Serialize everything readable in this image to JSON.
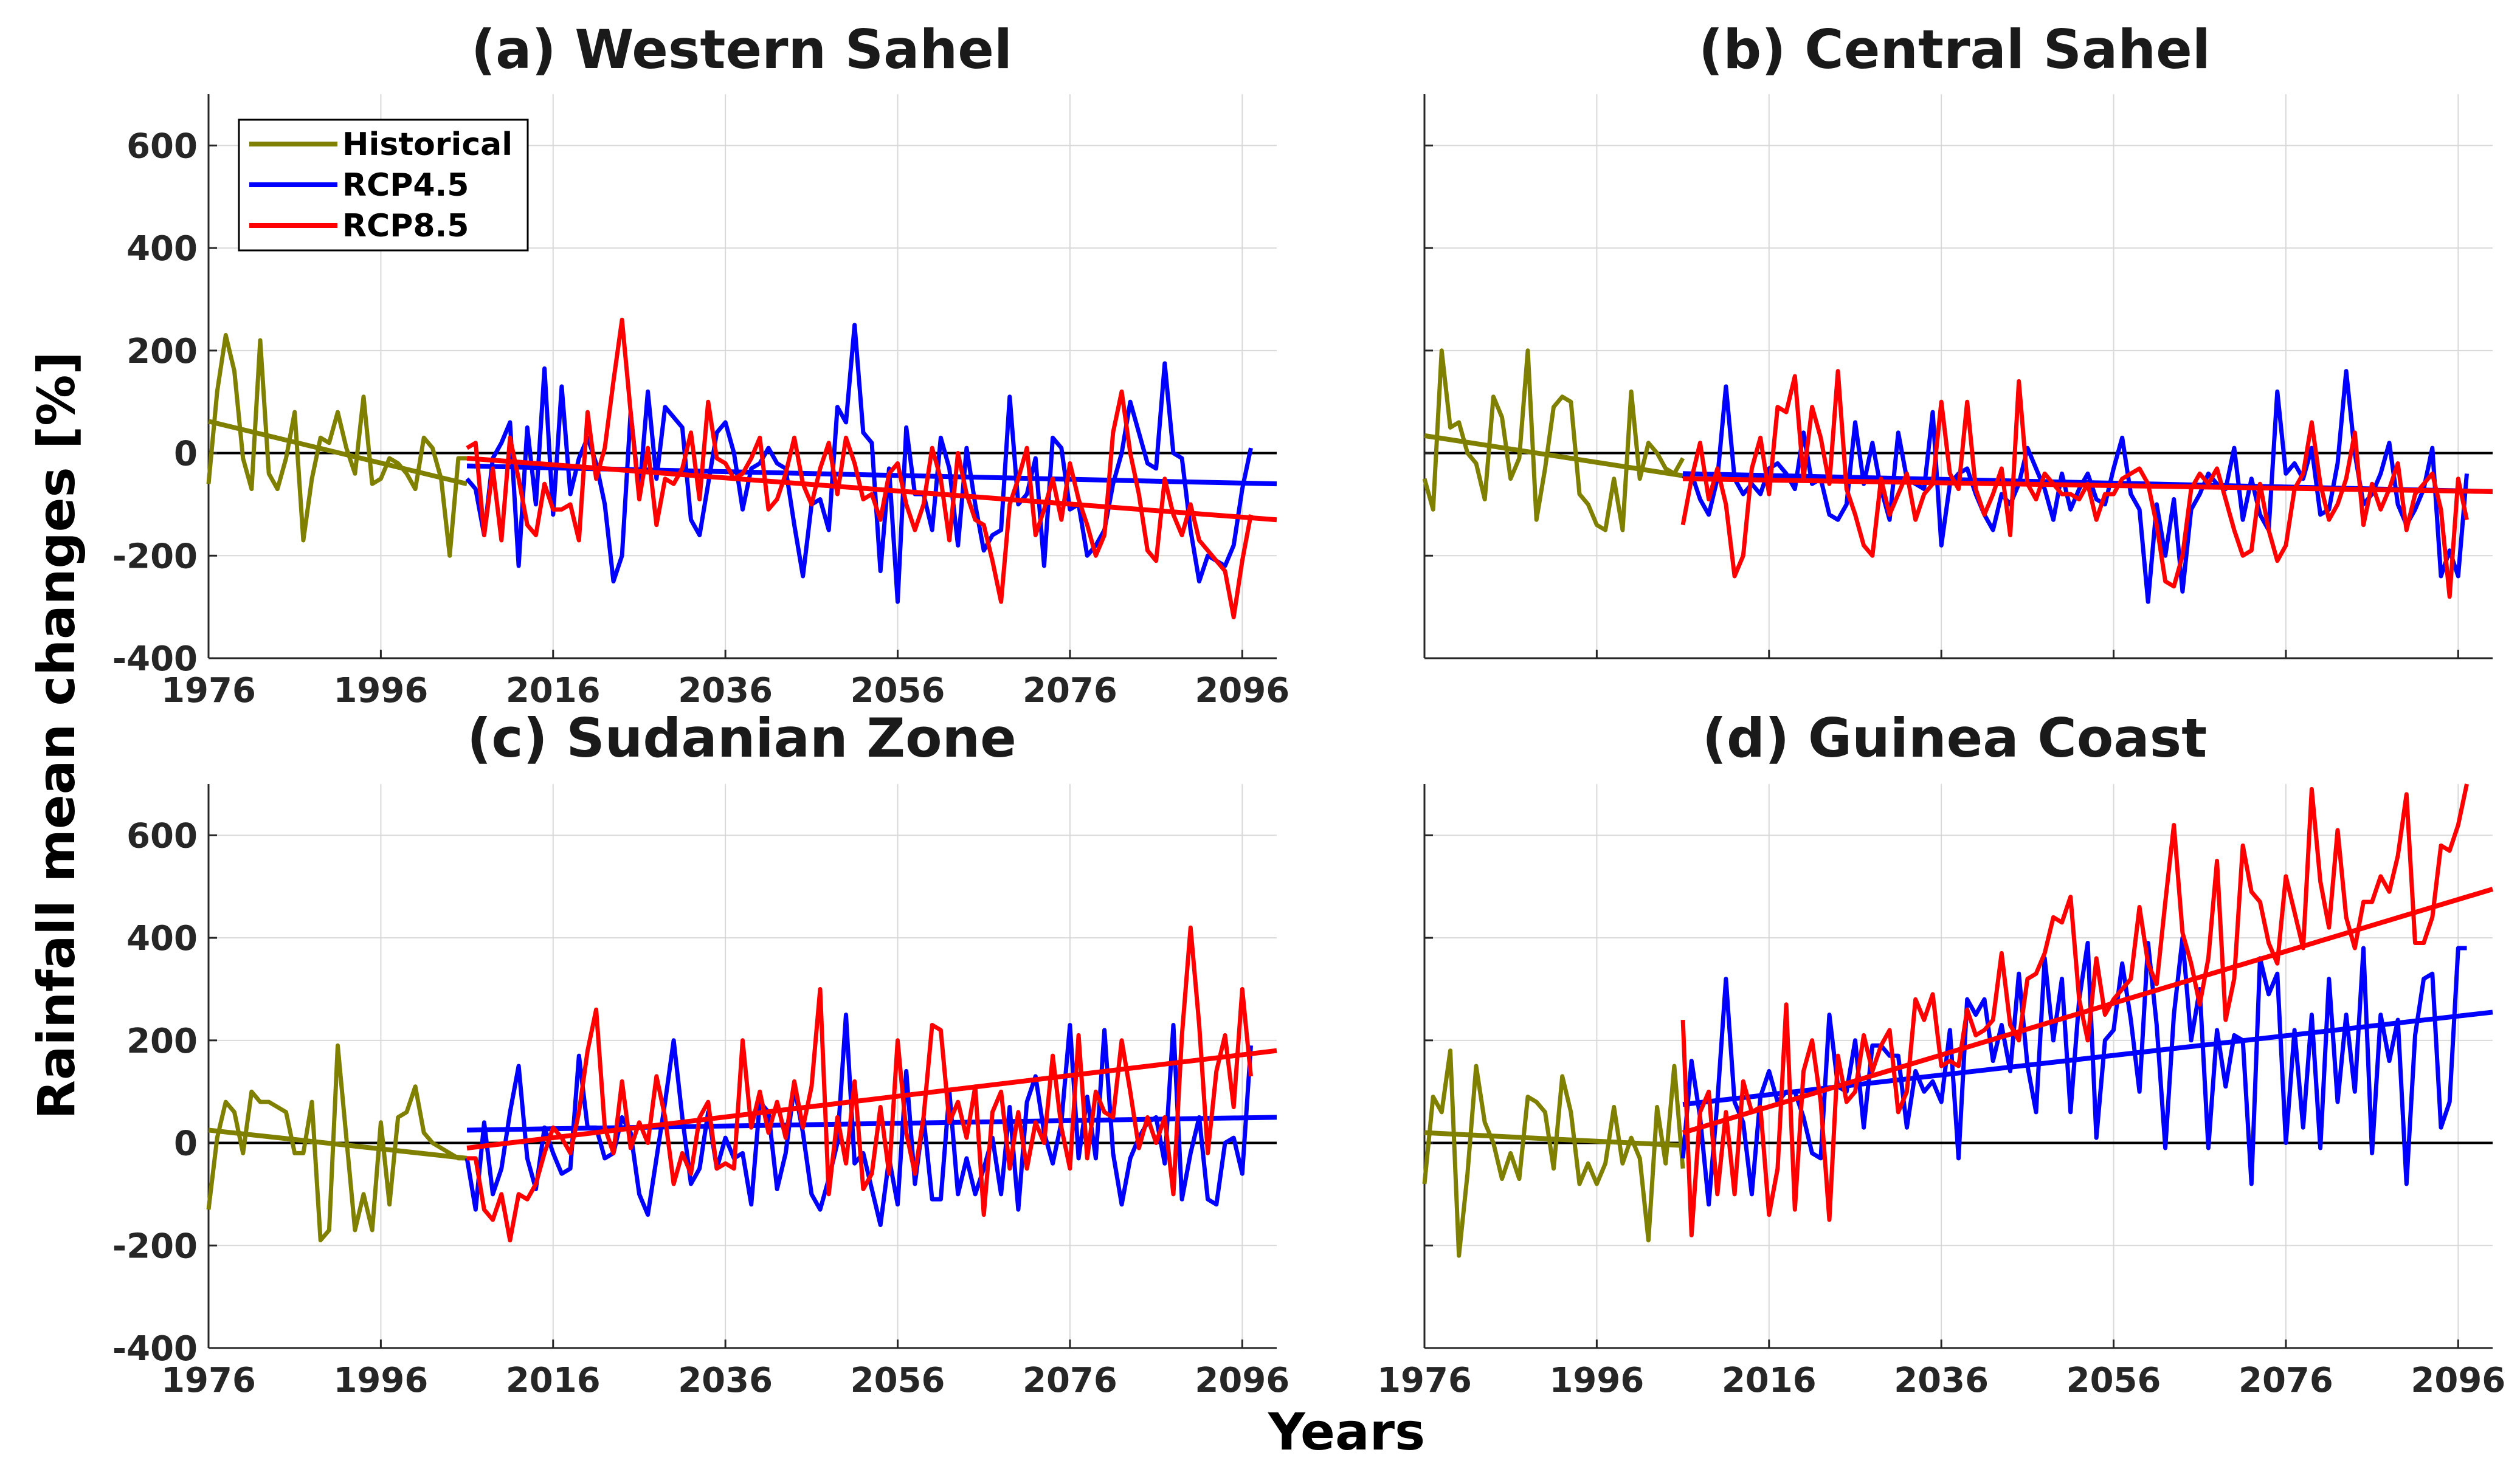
{
  "figure": {
    "ylabel": "Rainfall mean changes [%]",
    "xlabel": "Years"
  },
  "colors": {
    "Historical": "#808000",
    "RCP4.5": "#0000ff",
    "RCP8.5": "#ff0000",
    "zero_line": "#000000",
    "grid": "#d9d9d9"
  },
  "legend": {
    "position": "top-left",
    "entries": [
      "Historical",
      "RCP4.5",
      "RCP8.5"
    ]
  },
  "chart_data": [
    {
      "type": "line",
      "panel": "a",
      "title": "(a)  Western Sahel",
      "xlim": [
        1976,
        2100
      ],
      "ylim": [
        -400,
        700
      ],
      "xticks": [
        "1976",
        "1996",
        "2016",
        "2036",
        "2056",
        "2076",
        "2096"
      ],
      "yticks": [
        "-400",
        "-200",
        "0",
        "200",
        "400",
        "600"
      ],
      "series": [
        {
          "name": "Historical",
          "x_start": 1976,
          "values": [
            -60,
            120,
            230,
            160,
            -10,
            -70,
            220,
            -40,
            -70,
            -10,
            80,
            -170,
            -50,
            30,
            20,
            80,
            10,
            -40,
            110,
            -60,
            -50,
            -10,
            -20,
            -40,
            -70,
            30,
            10,
            -50,
            -200,
            -10,
            -10
          ],
          "trend": [
            [
              1976,
              62
            ],
            [
              2006,
              -60
            ]
          ]
        },
        {
          "name": "RCP4.5",
          "x_start": 2006,
          "values": [
            -50,
            -70,
            -160,
            -10,
            20,
            60,
            -220,
            50,
            -100,
            165,
            -120,
            130,
            -80,
            -10,
            30,
            -20,
            -100,
            -250,
            -200,
            80,
            -80,
            120,
            -50,
            90,
            70,
            50,
            -130,
            -160,
            -60,
            40,
            60,
            0,
            -110,
            -30,
            -20,
            10,
            -20,
            -30,
            -140,
            -240,
            -100,
            -90,
            -150,
            90,
            60,
            250,
            40,
            20,
            -230,
            -30,
            -290,
            50,
            -80,
            -80,
            -150,
            30,
            -30,
            -180,
            10,
            -100,
            -190,
            -160,
            -150,
            110,
            -100,
            -80,
            -10,
            -220,
            30,
            10,
            -110,
            -100,
            -200,
            -180,
            -150,
            -60,
            0,
            100,
            40,
            -20,
            -30,
            175,
            0,
            -10,
            -150,
            -250,
            -200,
            -210,
            -220,
            -180,
            -70,
            10
          ],
          "trend": [
            [
              2006,
              -25
            ],
            [
              2100,
              -60
            ]
          ]
        },
        {
          "name": "RCP8.5",
          "x_start": 2006,
          "values": [
            10,
            20,
            -160,
            -30,
            -170,
            30,
            -50,
            -140,
            -160,
            -60,
            -110,
            -110,
            -100,
            -170,
            80,
            -50,
            10,
            140,
            260,
            80,
            -90,
            10,
            -140,
            -50,
            -60,
            -30,
            40,
            -90,
            100,
            -10,
            -20,
            -50,
            -40,
            -10,
            30,
            -110,
            -90,
            -40,
            30,
            -60,
            -100,
            -30,
            20,
            -80,
            30,
            -20,
            -90,
            -80,
            -130,
            -40,
            -20,
            -100,
            -150,
            -100,
            10,
            -50,
            -170,
            0,
            -80,
            -130,
            -140,
            -210,
            -290,
            -100,
            -50,
            10,
            -160,
            -110,
            -50,
            -130,
            -20,
            -90,
            -140,
            -200,
            -160,
            40,
            120,
            0,
            -80,
            -190,
            -210,
            -50,
            -120,
            -160,
            -100,
            -170,
            -190,
            -210,
            -230,
            -320,
            -210,
            -120
          ],
          "trend": [
            [
              2006,
              -10
            ],
            [
              2100,
              -130
            ]
          ]
        }
      ]
    },
    {
      "type": "line",
      "panel": "b",
      "title": "(b)  Central Sahel",
      "xlim": [
        1976,
        2100
      ],
      "ylim": [
        -400,
        700
      ],
      "xticks": [],
      "yticks": [],
      "series": [
        {
          "name": "Historical",
          "x_start": 1976,
          "values": [
            -50,
            -110,
            200,
            50,
            60,
            0,
            -20,
            -90,
            110,
            70,
            -50,
            -10,
            200,
            -130,
            -30,
            90,
            110,
            100,
            -80,
            -100,
            -140,
            -150,
            -50,
            -150,
            120,
            -50,
            20,
            0,
            -30,
            -40,
            -10
          ],
          "trend": [
            [
              1976,
              34
            ],
            [
              2006,
              -44
            ]
          ]
        },
        {
          "name": "RCP4.5",
          "x_start": 2006,
          "values": [
            -50,
            -40,
            -90,
            -120,
            -50,
            130,
            -50,
            -80,
            -60,
            -80,
            -30,
            -20,
            -40,
            -70,
            40,
            -60,
            -50,
            -120,
            -130,
            -100,
            60,
            -60,
            20,
            -70,
            -130,
            40,
            -50,
            -60,
            -70,
            80,
            -180,
            -60,
            -40,
            -30,
            -80,
            -120,
            -150,
            -80,
            -100,
            -60,
            10,
            -30,
            -70,
            -130,
            -40,
            -110,
            -70,
            -40,
            -90,
            -100,
            -30,
            30,
            -80,
            -110,
            -290,
            -100,
            -200,
            -90,
            -270,
            -110,
            -80,
            -40,
            -60,
            -70,
            10,
            -130,
            -50,
            -120,
            -150,
            120,
            -40,
            -20,
            -50,
            10,
            -120,
            -110,
            -20,
            160,
            0,
            -100,
            -80,
            -40,
            20,
            -100,
            -140,
            -110,
            -70,
            10,
            -240,
            -190,
            -240,
            -40
          ],
          "trend": [
            [
              2006,
              -40
            ],
            [
              2100,
              -75
            ]
          ]
        },
        {
          "name": "RCP8.5",
          "x_start": 2006,
          "values": [
            -140,
            -50,
            20,
            -90,
            -30,
            -100,
            -240,
            -200,
            -30,
            30,
            -80,
            90,
            80,
            150,
            -50,
            90,
            30,
            -60,
            160,
            -70,
            -120,
            -180,
            -200,
            -50,
            -120,
            -80,
            -40,
            -130,
            -80,
            -60,
            100,
            -40,
            -70,
            100,
            -70,
            -120,
            -80,
            -30,
            -160,
            140,
            -60,
            -90,
            -40,
            -60,
            -80,
            -80,
            -90,
            -60,
            -130,
            -80,
            -80,
            -50,
            -40,
            -30,
            -60,
            -140,
            -250,
            -260,
            -200,
            -70,
            -40,
            -60,
            -30,
            -90,
            -150,
            -200,
            -190,
            -60,
            -150,
            -210,
            -180,
            -70,
            -40,
            60,
            -60,
            -130,
            -100,
            -50,
            40,
            -140,
            -60,
            -110,
            -70,
            -20,
            -150,
            -80,
            -60,
            -40,
            -110,
            -280,
            -50,
            -130
          ],
          "trend": [
            [
              2006,
              -50
            ],
            [
              2100,
              -75
            ]
          ]
        }
      ]
    },
    {
      "type": "line",
      "panel": "c",
      "title": "(c)  Sudanian Zone",
      "xlim": [
        1976,
        2100
      ],
      "ylim": [
        -400,
        700
      ],
      "xticks": [
        "1976",
        "1996",
        "2016",
        "2036",
        "2056",
        "2076",
        "2096"
      ],
      "yticks": [
        "-400",
        "-200",
        "0",
        "200",
        "400",
        "600"
      ],
      "series": [
        {
          "name": "Historical",
          "x_start": 1976,
          "values": [
            -130,
            10,
            80,
            60,
            -20,
            100,
            80,
            80,
            70,
            60,
            -20,
            -20,
            80,
            -190,
            -170,
            190,
            10,
            -170,
            -100,
            -170,
            40,
            -120,
            50,
            60,
            110,
            20,
            0,
            -10,
            -20,
            -30,
            -30
          ],
          "trend": [
            [
              1976,
              25
            ],
            [
              2006,
              -30
            ]
          ]
        },
        {
          "name": "RCP4.5",
          "x_start": 2006,
          "values": [
            -30,
            -130,
            40,
            -100,
            -50,
            60,
            150,
            -30,
            -90,
            30,
            -20,
            -60,
            -50,
            170,
            30,
            30,
            -30,
            -20,
            50,
            20,
            -100,
            -140,
            -30,
            80,
            200,
            50,
            -80,
            -50,
            60,
            -50,
            10,
            -30,
            -20,
            -120,
            80,
            60,
            -90,
            -20,
            110,
            20,
            -100,
            -130,
            -70,
            0,
            250,
            -40,
            -20,
            -90,
            -160,
            -30,
            -120,
            140,
            -80,
            50,
            -110,
            -110,
            100,
            -100,
            -30,
            -100,
            -50,
            10,
            -100,
            70,
            -130,
            80,
            130,
            20,
            -40,
            40,
            230,
            -30,
            90,
            -30,
            220,
            -20,
            -120,
            -30,
            10,
            40,
            50,
            -40,
            230,
            -110,
            -20,
            50,
            -110,
            -120,
            0,
            10,
            -60,
            190
          ],
          "trend": [
            [
              2006,
              25
            ],
            [
              2100,
              50
            ]
          ]
        },
        {
          "name": "RCP8.5",
          "x_start": 2006,
          "values": [
            -30,
            -30,
            -130,
            -150,
            -100,
            -190,
            -100,
            -110,
            -80,
            -20,
            30,
            10,
            -20,
            60,
            180,
            260,
            30,
            -20,
            120,
            -10,
            40,
            0,
            130,
            50,
            -80,
            -20,
            -60,
            50,
            80,
            -50,
            -40,
            -50,
            200,
            30,
            100,
            20,
            80,
            10,
            120,
            30,
            110,
            300,
            -100,
            50,
            -40,
            120,
            -90,
            -60,
            70,
            -60,
            200,
            20,
            -60,
            50,
            230,
            220,
            40,
            80,
            10,
            110,
            -140,
            60,
            100,
            -50,
            60,
            -50,
            40,
            0,
            170,
            30,
            -50,
            210,
            -30,
            100,
            60,
            50,
            200,
            100,
            -10,
            50,
            0,
            50,
            -100,
            210,
            420,
            230,
            -20,
            140,
            210,
            70,
            300,
            130
          ],
          "trend": [
            [
              2006,
              -10
            ],
            [
              2100,
              180
            ]
          ]
        }
      ]
    },
    {
      "type": "line",
      "panel": "d",
      "title": "(d)  Guinea Coast",
      "xlim": [
        1976,
        2100
      ],
      "ylim": [
        -400,
        700
      ],
      "xticks": [
        "1976",
        "1996",
        "2016",
        "2036",
        "2056",
        "2076",
        "2096"
      ],
      "yticks": [],
      "series": [
        {
          "name": "Historical",
          "x_start": 1976,
          "values": [
            -80,
            90,
            60,
            180,
            -220,
            -60,
            150,
            40,
            0,
            -70,
            -20,
            -70,
            90,
            80,
            60,
            -50,
            130,
            60,
            -80,
            -40,
            -80,
            -40,
            70,
            -40,
            10,
            -30,
            -190,
            70,
            -40,
            150,
            -50
          ],
          "trend": [
            [
              1976,
              20
            ],
            [
              2006,
              -5
            ]
          ]
        },
        {
          "name": "RCP4.5",
          "x_start": 2006,
          "values": [
            -30,
            160,
            50,
            -120,
            80,
            320,
            80,
            40,
            -100,
            90,
            140,
            80,
            100,
            100,
            50,
            -20,
            -30,
            250,
            110,
            100,
            200,
            30,
            190,
            190,
            170,
            170,
            30,
            140,
            100,
            120,
            80,
            220,
            -30,
            280,
            250,
            280,
            160,
            230,
            140,
            330,
            150,
            60,
            360,
            200,
            320,
            60,
            280,
            390,
            10,
            200,
            220,
            350,
            240,
            100,
            390,
            230,
            -10,
            250,
            400,
            200,
            300,
            -10,
            220,
            110,
            210,
            200,
            -80,
            360,
            290,
            330,
            0,
            220,
            30,
            250,
            -10,
            320,
            80,
            250,
            100,
            380,
            -20,
            250,
            160,
            240,
            -80,
            210,
            320,
            330,
            30,
            80,
            380,
            380
          ],
          "trend": [
            [
              2006,
              75
            ],
            [
              2100,
              255
            ]
          ]
        },
        {
          "name": "RCP8.5",
          "x_start": 2006,
          "values": [
            240,
            -180,
            60,
            100,
            -100,
            60,
            -100,
            120,
            60,
            70,
            -140,
            -50,
            270,
            -130,
            140,
            200,
            80,
            -150,
            170,
            80,
            100,
            210,
            140,
            190,
            220,
            60,
            100,
            280,
            240,
            290,
            150,
            160,
            150,
            260,
            210,
            220,
            240,
            370,
            230,
            200,
            320,
            330,
            370,
            440,
            430,
            480,
            280,
            200,
            360,
            250,
            280,
            300,
            320,
            460,
            350,
            310,
            470,
            620,
            410,
            350,
            270,
            360,
            550,
            240,
            320,
            580,
            490,
            470,
            390,
            350,
            520,
            450,
            380,
            690,
            510,
            420,
            610,
            440,
            380,
            470,
            470,
            520,
            490,
            560,
            680,
            390,
            390,
            440,
            580,
            570,
            620,
            700
          ],
          "trend": [
            [
              2006,
              20
            ],
            [
              2100,
              495
            ]
          ]
        }
      ]
    }
  ]
}
